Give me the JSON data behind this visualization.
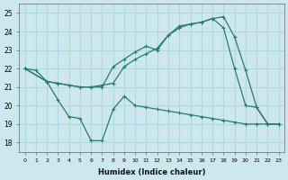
{
  "xlabel": "Humidex (Indice chaleur)",
  "background_color": "#cce8ee",
  "grid_color": "#b0d8e0",
  "line_color": "#2a7a70",
  "xlim": [
    -0.5,
    23.5
  ],
  "ylim": [
    17.5,
    25.5
  ],
  "xticks": [
    0,
    1,
    2,
    3,
    4,
    5,
    6,
    7,
    8,
    9,
    10,
    11,
    12,
    13,
    14,
    15,
    16,
    17,
    18,
    19,
    20,
    21,
    22,
    23
  ],
  "yticks": [
    18,
    19,
    20,
    21,
    22,
    23,
    24,
    25
  ],
  "series1_x": [
    0,
    1,
    2,
    3,
    4,
    5,
    6,
    7,
    8,
    9,
    10,
    11,
    12,
    13,
    14,
    15,
    16,
    17,
    18,
    19,
    20,
    21,
    22,
    23
  ],
  "series1_y": [
    22.0,
    21.9,
    21.3,
    20.3,
    19.4,
    19.3,
    18.1,
    18.1,
    19.8,
    20.5,
    20.0,
    19.9,
    19.8,
    19.7,
    19.6,
    19.5,
    19.4,
    19.3,
    19.2,
    19.1,
    19.0,
    19.0,
    19.0,
    19.0
  ],
  "series1_markers": [
    0,
    1,
    2,
    3,
    4,
    5,
    6,
    7,
    8,
    9
  ],
  "series2_x": [
    0,
    2,
    3,
    4,
    5,
    6,
    7,
    8,
    9,
    10,
    11,
    12,
    13,
    14,
    15,
    16,
    17,
    18,
    19,
    20,
    21,
    22,
    23
  ],
  "series2_y": [
    22.0,
    21.3,
    21.2,
    21.1,
    21.0,
    21.0,
    21.1,
    21.2,
    22.1,
    22.5,
    22.8,
    23.1,
    23.8,
    24.2,
    24.4,
    24.5,
    24.7,
    24.8,
    23.7,
    21.9,
    19.9,
    19.0,
    19.0
  ],
  "series3_x": [
    0,
    2,
    3,
    4,
    5,
    6,
    7,
    8,
    9,
    10,
    11,
    12,
    13,
    14,
    15,
    16,
    17,
    18,
    19,
    20,
    21,
    22,
    23
  ],
  "series3_y": [
    22.0,
    21.3,
    21.2,
    21.1,
    21.0,
    21.0,
    21.0,
    22.1,
    22.5,
    22.9,
    23.2,
    23.0,
    23.8,
    24.3,
    24.4,
    24.5,
    24.7,
    24.2,
    22.0,
    20.0,
    19.9,
    19.0,
    19.0
  ]
}
